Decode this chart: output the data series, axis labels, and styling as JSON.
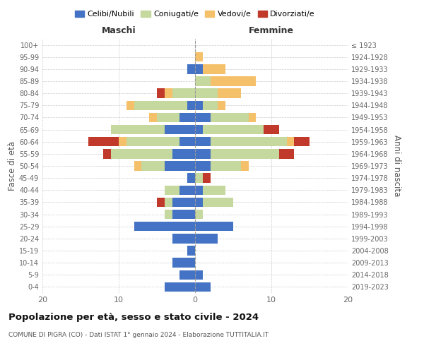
{
  "age_groups": [
    "0-4",
    "5-9",
    "10-14",
    "15-19",
    "20-24",
    "25-29",
    "30-34",
    "35-39",
    "40-44",
    "45-49",
    "50-54",
    "55-59",
    "60-64",
    "65-69",
    "70-74",
    "75-79",
    "80-84",
    "85-89",
    "90-94",
    "95-99",
    "100+"
  ],
  "birth_years": [
    "2019-2023",
    "2014-2018",
    "2009-2013",
    "2004-2008",
    "1999-2003",
    "1994-1998",
    "1989-1993",
    "1984-1988",
    "1979-1983",
    "1974-1978",
    "1969-1973",
    "1964-1968",
    "1959-1963",
    "1954-1958",
    "1949-1953",
    "1944-1948",
    "1939-1943",
    "1934-1938",
    "1929-1933",
    "1924-1928",
    "≤ 1923"
  ],
  "colors": {
    "celibi": "#4472c4",
    "coniugati": "#c5d89d",
    "vedovi": "#f5c06a",
    "divorziati": "#c0392b"
  },
  "males": {
    "celibi": [
      4,
      2,
      3,
      1,
      3,
      8,
      3,
      3,
      2,
      1,
      4,
      3,
      2,
      4,
      2,
      1,
      0,
      0,
      1,
      0,
      0
    ],
    "coniugati": [
      0,
      0,
      0,
      0,
      0,
      0,
      1,
      1,
      2,
      0,
      3,
      8,
      7,
      7,
      3,
      7,
      3,
      0,
      0,
      0,
      0
    ],
    "vedovi": [
      0,
      0,
      0,
      0,
      0,
      0,
      0,
      0,
      0,
      0,
      1,
      0,
      1,
      0,
      1,
      1,
      1,
      0,
      0,
      0,
      0
    ],
    "divorziati": [
      0,
      0,
      0,
      0,
      0,
      0,
      0,
      1,
      0,
      0,
      0,
      1,
      4,
      0,
      0,
      0,
      1,
      0,
      0,
      0,
      0
    ]
  },
  "females": {
    "celibi": [
      2,
      1,
      0,
      0,
      3,
      5,
      0,
      1,
      1,
      0,
      2,
      2,
      2,
      1,
      2,
      1,
      0,
      0,
      1,
      0,
      0
    ],
    "coniugati": [
      0,
      0,
      0,
      0,
      0,
      0,
      1,
      4,
      3,
      1,
      4,
      9,
      10,
      8,
      5,
      2,
      3,
      2,
      0,
      0,
      0
    ],
    "vedovi": [
      0,
      0,
      0,
      0,
      0,
      0,
      0,
      0,
      0,
      0,
      1,
      0,
      1,
      0,
      1,
      1,
      3,
      6,
      3,
      1,
      0
    ],
    "divorziati": [
      0,
      0,
      0,
      0,
      0,
      0,
      0,
      0,
      0,
      1,
      0,
      2,
      2,
      2,
      0,
      0,
      0,
      0,
      0,
      0,
      0
    ]
  },
  "xlim": 20,
  "title": "Popolazione per età, sesso e stato civile - 2024",
  "subtitle": "COMUNE DI PIGRA (CO) - Dati ISTAT 1° gennaio 2024 - Elaborazione TUTTITALIA.IT",
  "ylabel_left": "Fasce di età",
  "ylabel_right": "Anni di nascita",
  "xlabel_left": "Maschi",
  "xlabel_right": "Femmine",
  "legend_labels": [
    "Celibi/Nubili",
    "Coniugati/e",
    "Vedovi/e",
    "Divorziati/e"
  ]
}
